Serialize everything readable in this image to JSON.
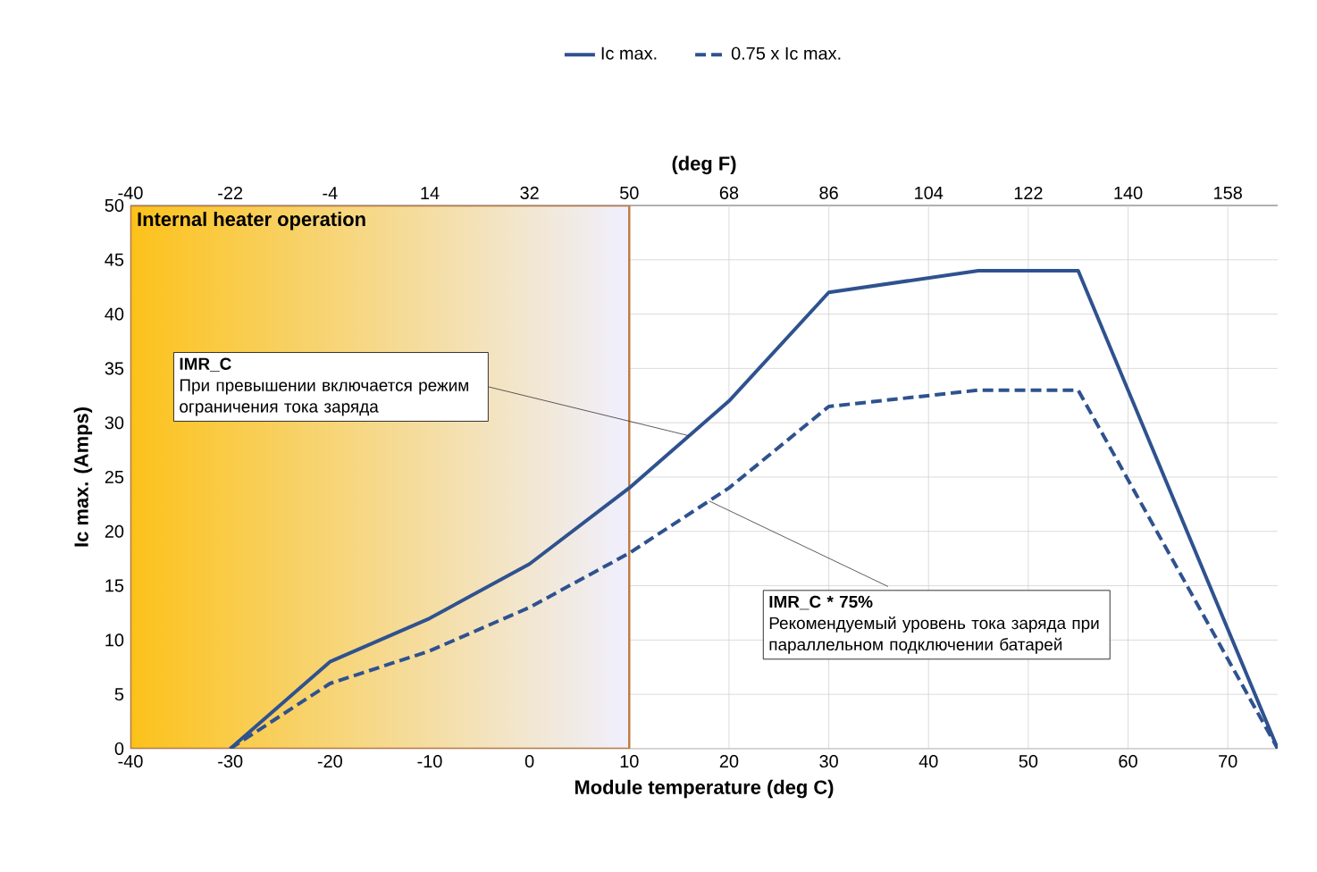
{
  "chart_data": {
    "type": "line",
    "xlabel": "Module temperature (deg C)",
    "ylabel": "Ic max. (Amps)",
    "x2label": "(deg F)",
    "xlim": [
      -40,
      75
    ],
    "xticks": [
      -40,
      -30,
      -20,
      -10,
      0,
      10,
      20,
      30,
      40,
      50,
      60,
      70
    ],
    "x2lim": [
      -40,
      167
    ],
    "x2ticks": [
      -40,
      -22,
      -4,
      14,
      32,
      50,
      68,
      86,
      104,
      122,
      140,
      158
    ],
    "ylim": [
      0,
      50
    ],
    "yticks": [
      0,
      5,
      10,
      15,
      20,
      25,
      30,
      35,
      40,
      45,
      50
    ],
    "grid": true,
    "legend": "top",
    "series": [
      {
        "name": "Ic max.",
        "color": "#2f528f",
        "line_style": "solid",
        "x": [
          -30,
          -20,
          -10,
          0,
          10,
          20,
          30,
          45,
          55,
          75
        ],
        "values": [
          0,
          8,
          12,
          17,
          24,
          32,
          42,
          44,
          44,
          0
        ]
      },
      {
        "name": "0.75 x Ic max.",
        "color": "#2f528f",
        "line_style": "dashed",
        "x": [
          -30,
          -20,
          -10,
          0,
          10,
          20,
          30,
          45,
          55,
          75
        ],
        "values": [
          0,
          6,
          9,
          13,
          18,
          24,
          31.5,
          33,
          33,
          0
        ]
      }
    ],
    "bands": [
      {
        "axis": "x",
        "from": -40,
        "to": 10,
        "label": "Internal heater operation",
        "color": "#fcc21a"
      }
    ],
    "annotations": [
      "IMR_C",
      {
        "text": "При превышении включается режим ограничения тока заряда",
        "x": 16,
        "y": 28.8
      },
      {
        "text": "IMR_C * 75%",
        "x": 18,
        "y": 22.8
      },
      "Рекомендуемый уровень тока заряда при параллельном подключении батарей"
    ]
  }
}
